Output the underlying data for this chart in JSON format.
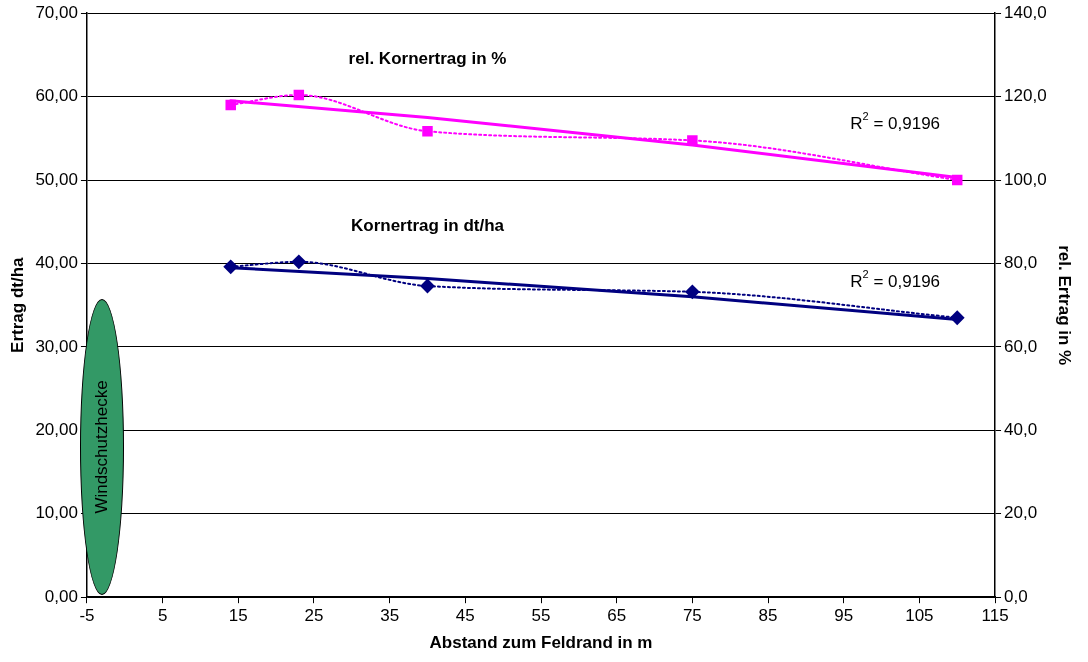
{
  "chart_data": {
    "type": "line",
    "xlabel": "Abstand zum Feldrand in m",
    "ylabel": "Ertrag dt/ha",
    "y2label": "rel. Ertrag in %",
    "xlim": [
      -5,
      115
    ],
    "xticks": [
      -5,
      5,
      15,
      25,
      35,
      45,
      55,
      65,
      75,
      85,
      95,
      105,
      115
    ],
    "ylim": [
      0,
      70
    ],
    "yticks": [
      {
        "value": 0,
        "label": "0,00"
      },
      {
        "value": 10,
        "label": "10,00"
      },
      {
        "value": 20,
        "label": "20,00"
      },
      {
        "value": 30,
        "label": "30,00"
      },
      {
        "value": 40,
        "label": "40,00"
      },
      {
        "value": 50,
        "label": "50,00"
      },
      {
        "value": 60,
        "label": "60,00"
      },
      {
        "value": 70,
        "label": "70,00"
      }
    ],
    "y2lim": [
      0,
      140
    ],
    "y2ticks": [
      {
        "value": 0,
        "label": "0,0"
      },
      {
        "value": 20,
        "label": "20,0"
      },
      {
        "value": 40,
        "label": "40,0"
      },
      {
        "value": 60,
        "label": "60,0"
      },
      {
        "value": 80,
        "label": "80,0"
      },
      {
        "value": 100,
        "label": "100,0"
      },
      {
        "value": 120,
        "label": "120,0"
      },
      {
        "value": 140,
        "label": "140,0"
      }
    ],
    "grid": "y",
    "legend": false,
    "series": [
      {
        "name": "rel. Kornertrag in %",
        "color": "#ff00ff",
        "axis": "y2",
        "marker": "square",
        "line_style": "dotted",
        "x": [
          14,
          23,
          40,
          75,
          110
        ],
        "values": [
          118.0,
          120.4,
          111.7,
          109.5,
          100.0
        ]
      },
      {
        "color": "#ff00ff",
        "axis": "y2",
        "marker": "none",
        "line_style": "solid",
        "x": [
          14,
          40,
          75,
          110
        ],
        "values": [
          119.0,
          115.0,
          108.4,
          100.6
        ]
      },
      {
        "name": "Kornertrag in dt/ha",
        "color": "#000080",
        "marker": "diamond",
        "line_style": "dotted",
        "x": [
          14,
          23,
          40,
          75,
          110
        ],
        "values": [
          39.6,
          40.2,
          37.3,
          36.6,
          33.5
        ]
      },
      {
        "color": "#000080",
        "marker": "none",
        "line_style": "solid",
        "x": [
          14,
          40,
          75,
          110
        ],
        "values": [
          39.5,
          38.2,
          36.0,
          33.3
        ]
      }
    ],
    "annotations": [
      "R$^{2}$ = 0,9196",
      "R$^{2}$ = 0,9196",
      "Windschutzhecke"
    ]
  }
}
